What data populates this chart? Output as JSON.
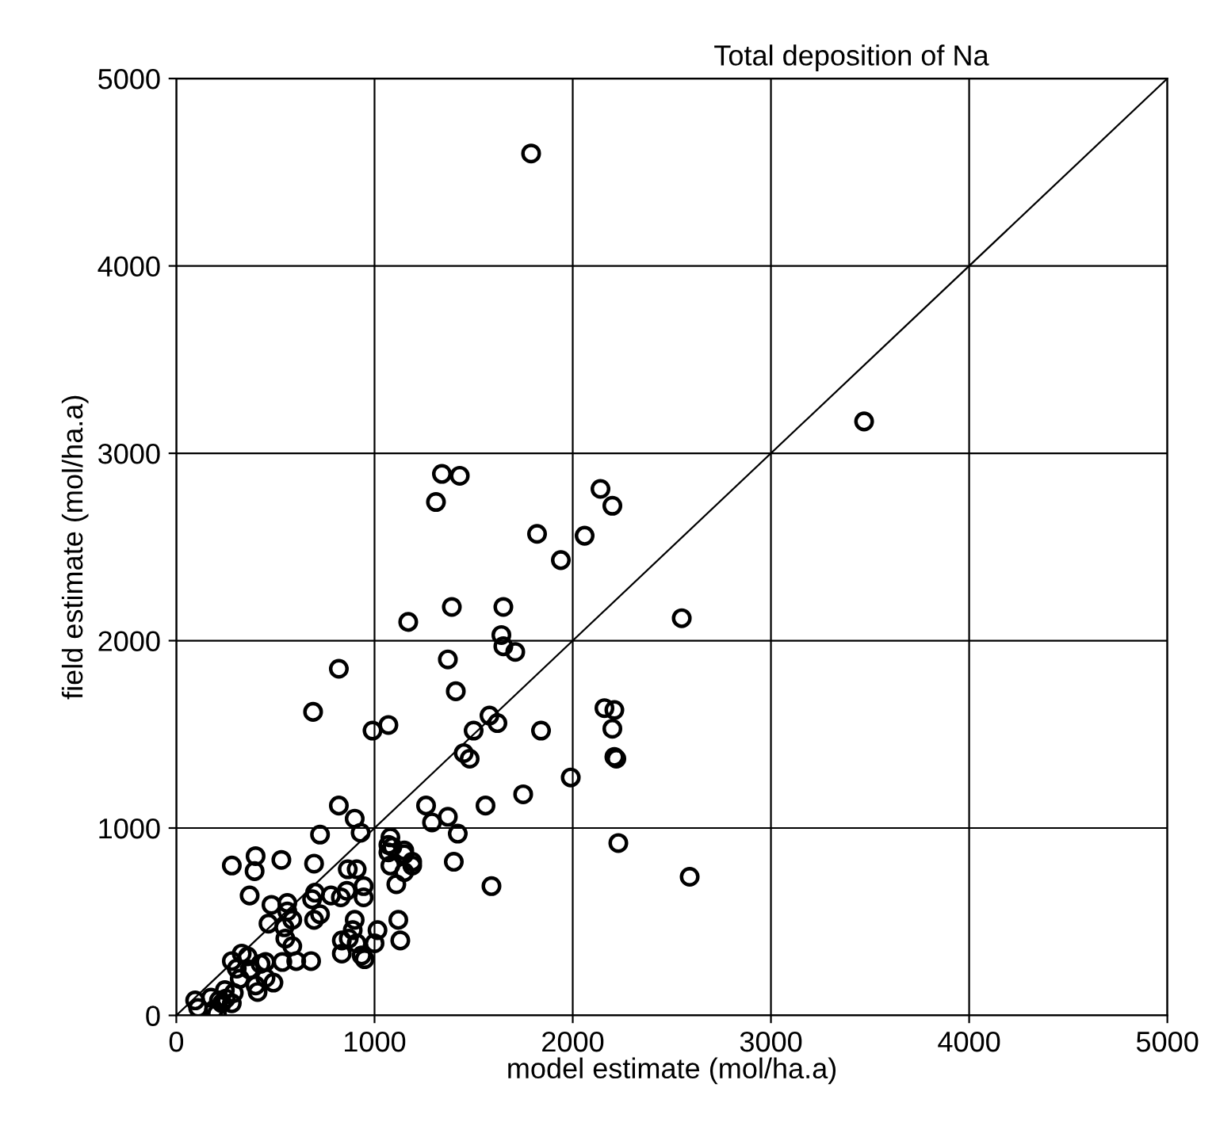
{
  "chart_data": {
    "type": "scatter",
    "title": "Total deposition of Na",
    "xlabel": "model estimate (mol/ha.a)",
    "ylabel": "field estimate (mol/ha.a)",
    "xlim": [
      0,
      5000
    ],
    "ylim": [
      0,
      5000
    ],
    "xticks": [
      0,
      1000,
      2000,
      3000,
      4000,
      5000
    ],
    "yticks": [
      0,
      1000,
      2000,
      3000,
      4000,
      5000
    ],
    "grid": true,
    "series": [
      {
        "marker": "circle",
        "color": "#000000",
        "x": [
          1790,
          3470,
          2550,
          2160,
          2210,
          2200,
          2210,
          2220,
          1840,
          1990,
          1750,
          2230,
          2590,
          1170,
          1390,
          1650,
          1640,
          1650,
          1710,
          1370,
          1410,
          990,
          1070,
          1580,
          1620,
          1500,
          1450,
          1480,
          1260,
          1560,
          1290,
          1370,
          1420,
          1090,
          1150,
          1070,
          1190,
          1400,
          1340,
          1430,
          1310,
          2140,
          2200,
          1820,
          2060,
          1940,
          820,
          900,
          930,
          725,
          280,
          400,
          395,
          530,
          695,
          865,
          910,
          945,
          700,
          685,
          860,
          780,
          830,
          945,
          1080,
          1150,
          1190,
          1080,
          1150,
          1110,
          1070,
          370,
          480,
          560,
          560,
          465,
          545,
          585,
          695,
          725,
          900,
          890,
          870,
          835,
          835,
          910,
          935,
          950,
          1015,
          1000,
          1120,
          1130,
          550,
          585,
          535,
          605,
          680,
          330,
          360,
          280,
          425,
          450,
          305,
          370,
          450,
          490,
          400,
          410,
          320,
          245,
          290,
          250,
          215,
          95,
          110,
          190,
          205,
          230,
          280,
          175,
          1590,
          820,
          690
        ],
        "values": [
          4600,
          3170,
          2120,
          1640,
          1630,
          1530,
          1380,
          1370,
          1520,
          1270,
          1180,
          920,
          740,
          2100,
          2180,
          2180,
          2030,
          1970,
          1940,
          1900,
          1730,
          1520,
          1550,
          1600,
          1560,
          1520,
          1400,
          1370,
          1120,
          1120,
          1030,
          1060,
          970,
          900,
          860,
          870,
          800,
          820,
          2890,
          2880,
          2740,
          2810,
          2720,
          2570,
          2560,
          2430,
          1120,
          1050,
          975,
          965,
          800,
          850,
          770,
          830,
          810,
          780,
          780,
          690,
          655,
          620,
          665,
          640,
          630,
          630,
          950,
          880,
          820,
          800,
          765,
          700,
          910,
          640,
          590,
          600,
          555,
          490,
          470,
          510,
          510,
          540,
          510,
          455,
          410,
          400,
          330,
          385,
          320,
          300,
          455,
          385,
          510,
          400,
          410,
          370,
          285,
          290,
          290,
          330,
          315,
          290,
          275,
          285,
          250,
          245,
          200,
          175,
          160,
          125,
          195,
          135,
          120,
          90,
          80,
          80,
          40,
          30,
          10,
          65,
          65,
          95,
          690,
          1850,
          1620
        ]
      },
      {
        "type": "line",
        "marker": "none",
        "color": "#000000",
        "x": [
          0,
          5000
        ],
        "values": [
          0,
          5000
        ]
      }
    ]
  }
}
